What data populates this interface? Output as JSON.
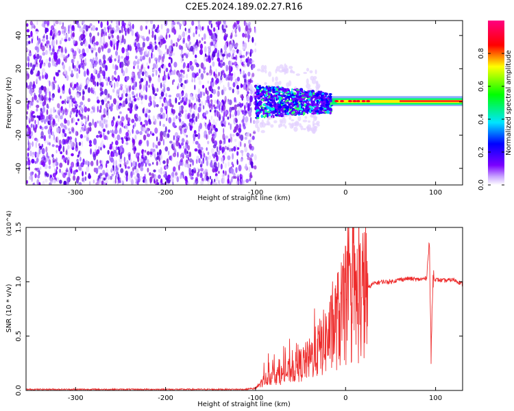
{
  "title": "C2E5.2024.189.02.27.R16",
  "chart_data": [
    {
      "type": "heatmap",
      "title": "C2E5.2024.189.02.27.R16",
      "xlabel": "Height of straight line (km)",
      "ylabel": "Frequency (Hz)",
      "xlim": [
        -355,
        130
      ],
      "ylim": [
        -50,
        49
      ],
      "xticks": [
        -300,
        -200,
        -100,
        0,
        100
      ],
      "yticks": [
        -40,
        -20,
        0,
        20,
        40
      ],
      "colorbar": {
        "label": "Normalized spectral amplitude",
        "range": [
          0,
          1
        ],
        "ticks": [
          "0.0",
          "0.2",
          "0.4",
          "0.6",
          "0.8"
        ],
        "colors": [
          "#ffffff",
          "#7b00ff",
          "#0000ff",
          "#00e5ff",
          "#00ff00",
          "#ffff00",
          "#ff0000",
          "#ff0080"
        ]
      },
      "regions": [
        {
          "x": [
            -355,
            -100
          ],
          "freq": [
            -50,
            49
          ],
          "amplitude": "0.05-0.2",
          "description_color": "#7b00ff"
        },
        {
          "x": [
            -100,
            -15
          ],
          "freq": [
            -12,
            12
          ],
          "amplitude": "0.2-0.5"
        },
        {
          "x": [
            -15,
            130
          ],
          "freq": [
            -2,
            2
          ],
          "amplitude": "0.5-1.0"
        }
      ]
    },
    {
      "type": "line",
      "xlabel": "Height of straight line (km)",
      "ylabel": "SNR (10 * v/v)",
      "y_multiplier": "(x10^4)",
      "xlim": [
        -355,
        130
      ],
      "ylim": [
        0,
        1.5
      ],
      "xticks": [
        -300,
        -200,
        -100,
        0,
        100
      ],
      "yticks": [
        "0.0",
        "0.5",
        "1.0",
        "1.5"
      ],
      "color": "#ee2c2c",
      "series": [
        {
          "x": [
            -355,
            -300,
            -200,
            -110,
            -100,
            -90,
            -80,
            -70,
            -60,
            -50,
            -40,
            -30,
            -20,
            -15,
            -10,
            0,
            10,
            20,
            30,
            40,
            50,
            60,
            70,
            80,
            90,
            93,
            95,
            97,
            100,
            110,
            120,
            130
          ],
          "values": [
            0.01,
            0.01,
            0.01,
            0.01,
            0.03,
            0.15,
            0.2,
            0.2,
            0.25,
            0.3,
            0.35,
            0.45,
            0.55,
            0.6,
            0.7,
            0.8,
            0.85,
            0.9,
            0.98,
            1.0,
            1.0,
            1.02,
            1.03,
            1.02,
            1.03,
            1.4,
            0.3,
            1.05,
            1.02,
            1.01,
            1.02,
            0.98
          ]
        }
      ]
    }
  ]
}
